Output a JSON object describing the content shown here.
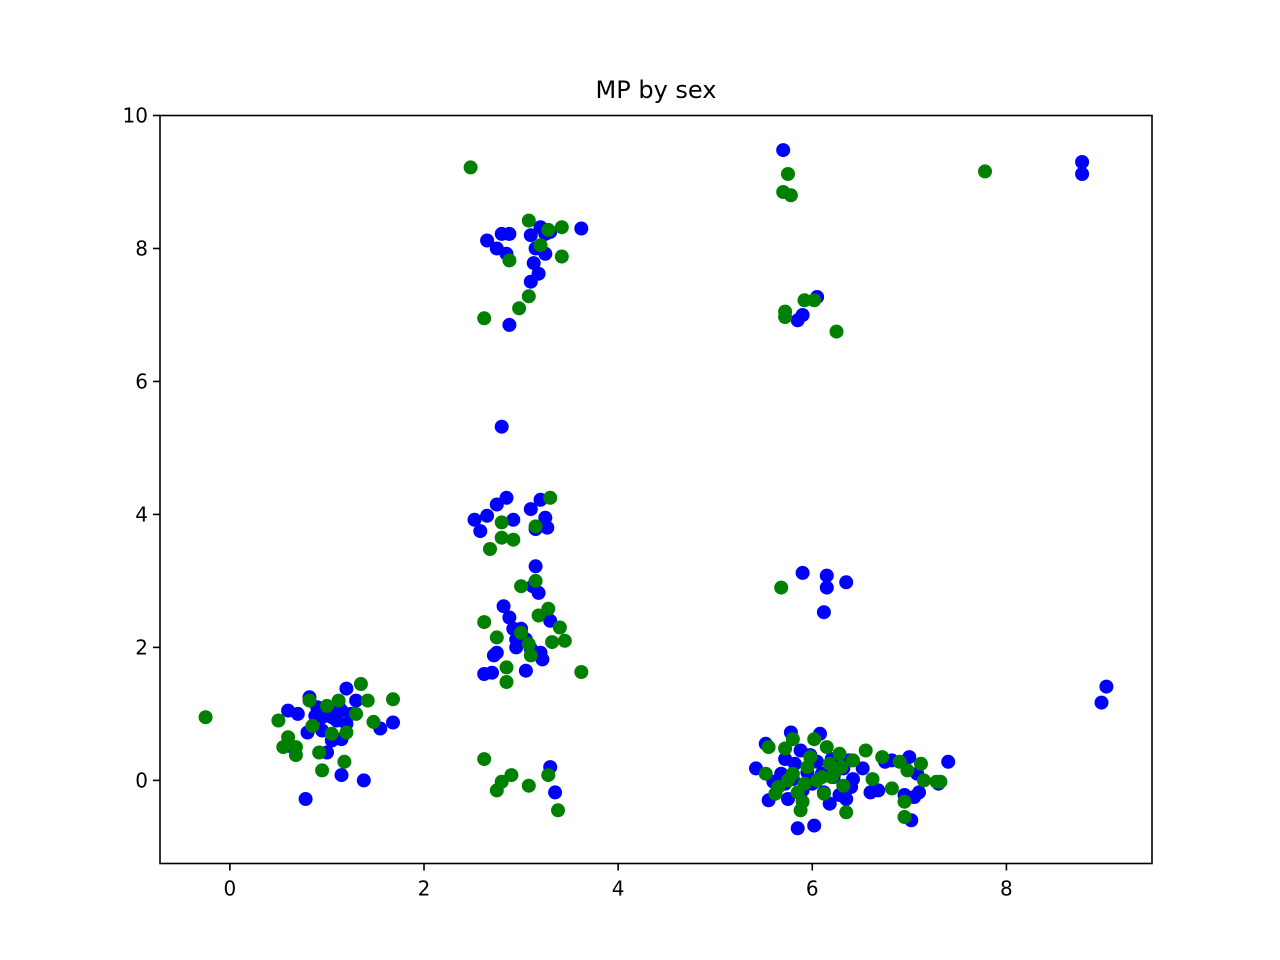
{
  "chart_data": {
    "type": "scatter",
    "title": "MP by sex",
    "xlabel": "",
    "ylabel": "",
    "xlim": [
      -0.72,
      9.5
    ],
    "ylim": [
      -1.25,
      10
    ],
    "xticks": [
      0,
      2,
      4,
      6,
      8
    ],
    "yticks": [
      0,
      2,
      4,
      6,
      8,
      10
    ],
    "grid": false,
    "legend": "none",
    "series": [
      {
        "color": "#0000ff",
        "points": [
          [
            0.6,
            1.05
          ],
          [
            0.7,
            1.0
          ],
          [
            0.82,
            1.25
          ],
          [
            0.9,
            1.1
          ],
          [
            0.95,
            0.95
          ],
          [
            1.0,
            1.05
          ],
          [
            1.05,
            0.95
          ],
          [
            1.1,
            0.9
          ],
          [
            1.15,
            1.05
          ],
          [
            1.2,
            0.85
          ],
          [
            1.25,
            1.0
          ],
          [
            1.3,
            1.2
          ],
          [
            1.2,
            1.38
          ],
          [
            0.8,
            0.72
          ],
          [
            0.95,
            0.75
          ],
          [
            1.05,
            0.6
          ],
          [
            1.15,
            0.62
          ],
          [
            1.0,
            0.42
          ],
          [
            0.6,
            0.52
          ],
          [
            0.78,
            -0.28
          ],
          [
            1.15,
            0.08
          ],
          [
            1.38,
            0.0
          ],
          [
            1.55,
            0.78
          ],
          [
            1.68,
            0.87
          ],
          [
            0.88,
            0.97
          ],
          [
            1.12,
            1.12
          ],
          [
            2.65,
            8.12
          ],
          [
            2.75,
            8.0
          ],
          [
            2.8,
            8.22
          ],
          [
            2.88,
            8.22
          ],
          [
            2.85,
            7.92
          ],
          [
            3.1,
            8.2
          ],
          [
            3.15,
            8.0
          ],
          [
            3.13,
            7.78
          ],
          [
            3.2,
            8.32
          ],
          [
            3.25,
            8.22
          ],
          [
            3.3,
            8.25
          ],
          [
            3.25,
            7.92
          ],
          [
            3.1,
            7.5
          ],
          [
            3.18,
            7.62
          ],
          [
            3.62,
            8.3
          ],
          [
            2.88,
            6.85
          ],
          [
            2.8,
            5.32
          ],
          [
            2.52,
            3.92
          ],
          [
            2.58,
            3.75
          ],
          [
            2.65,
            3.98
          ],
          [
            2.75,
            4.15
          ],
          [
            2.85,
            4.25
          ],
          [
            2.92,
            3.92
          ],
          [
            3.1,
            4.08
          ],
          [
            3.2,
            4.22
          ],
          [
            3.25,
            3.95
          ],
          [
            3.27,
            3.8
          ],
          [
            3.15,
            3.78
          ],
          [
            3.15,
            3.22
          ],
          [
            3.12,
            2.92
          ],
          [
            3.18,
            2.82
          ],
          [
            2.82,
            2.62
          ],
          [
            2.88,
            2.45
          ],
          [
            2.92,
            2.28
          ],
          [
            3.0,
            2.28
          ],
          [
            3.05,
            2.12
          ],
          [
            2.95,
            2.0
          ],
          [
            3.1,
            1.98
          ],
          [
            3.2,
            1.92
          ],
          [
            3.22,
            1.82
          ],
          [
            2.75,
            1.92
          ],
          [
            2.72,
            1.88
          ],
          [
            3.05,
            1.65
          ],
          [
            2.62,
            1.6
          ],
          [
            2.7,
            1.62
          ],
          [
            3.3,
            2.4
          ],
          [
            2.95,
            2.12
          ],
          [
            3.3,
            0.2
          ],
          [
            3.35,
            -0.18
          ],
          [
            5.7,
            9.48
          ],
          [
            5.85,
            6.92
          ],
          [
            5.9,
            7.0
          ],
          [
            6.05,
            7.27
          ],
          [
            5.9,
            3.12
          ],
          [
            6.15,
            3.08
          ],
          [
            6.15,
            2.9
          ],
          [
            6.35,
            2.98
          ],
          [
            6.12,
            2.53
          ],
          [
            5.42,
            0.18
          ],
          [
            5.52,
            0.55
          ],
          [
            5.55,
            -0.3
          ],
          [
            5.6,
            -0.02
          ],
          [
            5.68,
            0.1
          ],
          [
            5.72,
            0.32
          ],
          [
            5.75,
            -0.28
          ],
          [
            5.78,
            0.72
          ],
          [
            5.8,
            0.02
          ],
          [
            5.82,
            0.25
          ],
          [
            5.85,
            -0.72
          ],
          [
            5.88,
            0.45
          ],
          [
            5.9,
            -0.15
          ],
          [
            5.95,
            0.12
          ],
          [
            6.0,
            -0.05
          ],
          [
            6.02,
            -0.68
          ],
          [
            6.05,
            0.28
          ],
          [
            6.08,
            0.7
          ],
          [
            6.1,
            0.1
          ],
          [
            6.12,
            -0.18
          ],
          [
            6.18,
            -0.35
          ],
          [
            6.2,
            0.32
          ],
          [
            6.22,
            0.05
          ],
          [
            6.28,
            -0.22
          ],
          [
            6.32,
            0.18
          ],
          [
            6.35,
            -0.28
          ],
          [
            6.38,
            0.3
          ],
          [
            6.4,
            -0.1
          ],
          [
            6.52,
            0.18
          ],
          [
            6.6,
            -0.18
          ],
          [
            6.68,
            -0.15
          ],
          [
            6.75,
            0.28
          ],
          [
            6.82,
            0.3
          ],
          [
            6.95,
            -0.22
          ],
          [
            7.0,
            0.35
          ],
          [
            7.02,
            -0.6
          ],
          [
            7.05,
            -0.25
          ],
          [
            7.08,
            0.1
          ],
          [
            7.1,
            -0.18
          ],
          [
            7.3,
            -0.05
          ],
          [
            7.4,
            0.28
          ],
          [
            5.72,
            -0.05
          ],
          [
            5.98,
            0.38
          ],
          [
            6.42,
            0.02
          ],
          [
            8.78,
            9.3
          ],
          [
            8.78,
            9.12
          ],
          [
            8.98,
            1.17
          ],
          [
            9.03,
            1.41
          ]
        ]
      },
      {
        "color": "#008000",
        "points": [
          [
            -0.25,
            0.95
          ],
          [
            0.5,
            0.9
          ],
          [
            0.55,
            0.5
          ],
          [
            0.6,
            0.65
          ],
          [
            0.68,
            0.38
          ],
          [
            0.68,
            0.5
          ],
          [
            0.82,
            1.2
          ],
          [
            0.92,
            0.42
          ],
          [
            0.95,
            0.15
          ],
          [
            1.05,
            0.7
          ],
          [
            1.0,
            1.12
          ],
          [
            1.18,
            0.28
          ],
          [
            1.2,
            0.72
          ],
          [
            1.3,
            1.0
          ],
          [
            1.35,
            1.45
          ],
          [
            1.42,
            1.2
          ],
          [
            1.48,
            0.88
          ],
          [
            1.68,
            1.22
          ],
          [
            1.12,
            1.2
          ],
          [
            0.85,
            0.82
          ],
          [
            2.48,
            9.22
          ],
          [
            2.62,
            6.95
          ],
          [
            2.98,
            7.1
          ],
          [
            3.08,
            8.42
          ],
          [
            3.2,
            8.05
          ],
          [
            3.28,
            8.28
          ],
          [
            3.42,
            7.88
          ],
          [
            3.42,
            8.32
          ],
          [
            3.08,
            7.28
          ],
          [
            2.88,
            7.82
          ],
          [
            2.68,
            3.48
          ],
          [
            2.8,
            3.88
          ],
          [
            2.8,
            3.65
          ],
          [
            2.92,
            3.62
          ],
          [
            3.15,
            3.82
          ],
          [
            3.3,
            4.25
          ],
          [
            3.0,
            2.92
          ],
          [
            3.15,
            3.0
          ],
          [
            2.62,
            2.38
          ],
          [
            2.75,
            2.15
          ],
          [
            2.85,
            1.7
          ],
          [
            2.85,
            1.48
          ],
          [
            3.0,
            2.22
          ],
          [
            3.1,
            1.88
          ],
          [
            3.18,
            2.48
          ],
          [
            3.28,
            2.58
          ],
          [
            3.32,
            2.08
          ],
          [
            3.4,
            2.3
          ],
          [
            3.45,
            2.1
          ],
          [
            3.62,
            1.63
          ],
          [
            3.08,
            2.05
          ],
          [
            2.62,
            0.32
          ],
          [
            2.75,
            -0.15
          ],
          [
            2.8,
            -0.02
          ],
          [
            2.9,
            0.08
          ],
          [
            3.08,
            -0.08
          ],
          [
            3.28,
            0.08
          ],
          [
            3.38,
            -0.45
          ],
          [
            5.7,
            8.85
          ],
          [
            5.75,
            9.12
          ],
          [
            5.78,
            8.8
          ],
          [
            5.72,
            7.05
          ],
          [
            5.72,
            6.97
          ],
          [
            5.92,
            7.22
          ],
          [
            6.02,
            7.22
          ],
          [
            6.25,
            6.75
          ],
          [
            5.68,
            2.9
          ],
          [
            5.52,
            0.1
          ],
          [
            5.55,
            0.5
          ],
          [
            5.62,
            -0.2
          ],
          [
            5.65,
            -0.1
          ],
          [
            5.72,
            0.48
          ],
          [
            5.75,
            0.0
          ],
          [
            5.8,
            0.1
          ],
          [
            5.8,
            0.62
          ],
          [
            5.85,
            -0.18
          ],
          [
            5.88,
            -0.45
          ],
          [
            5.92,
            -0.05
          ],
          [
            5.95,
            0.2
          ],
          [
            5.98,
            0.35
          ],
          [
            6.02,
            0.62
          ],
          [
            6.05,
            0.0
          ],
          [
            6.1,
            0.05
          ],
          [
            6.12,
            -0.2
          ],
          [
            6.15,
            0.5
          ],
          [
            6.18,
            0.25
          ],
          [
            6.2,
            0.05
          ],
          [
            6.25,
            0.15
          ],
          [
            6.28,
            0.4
          ],
          [
            6.32,
            -0.08
          ],
          [
            6.35,
            -0.48
          ],
          [
            6.42,
            0.3
          ],
          [
            6.55,
            0.45
          ],
          [
            6.62,
            0.02
          ],
          [
            6.72,
            0.35
          ],
          [
            6.82,
            -0.12
          ],
          [
            6.9,
            0.28
          ],
          [
            6.95,
            -0.32
          ],
          [
            6.95,
            -0.55
          ],
          [
            6.98,
            0.15
          ],
          [
            7.12,
            0.25
          ],
          [
            7.15,
            0.0
          ],
          [
            7.28,
            -0.02
          ],
          [
            7.32,
            -0.02
          ],
          [
            5.9,
            -0.32
          ],
          [
            6.3,
            0.2
          ],
          [
            7.78,
            9.16
          ]
        ]
      }
    ]
  }
}
